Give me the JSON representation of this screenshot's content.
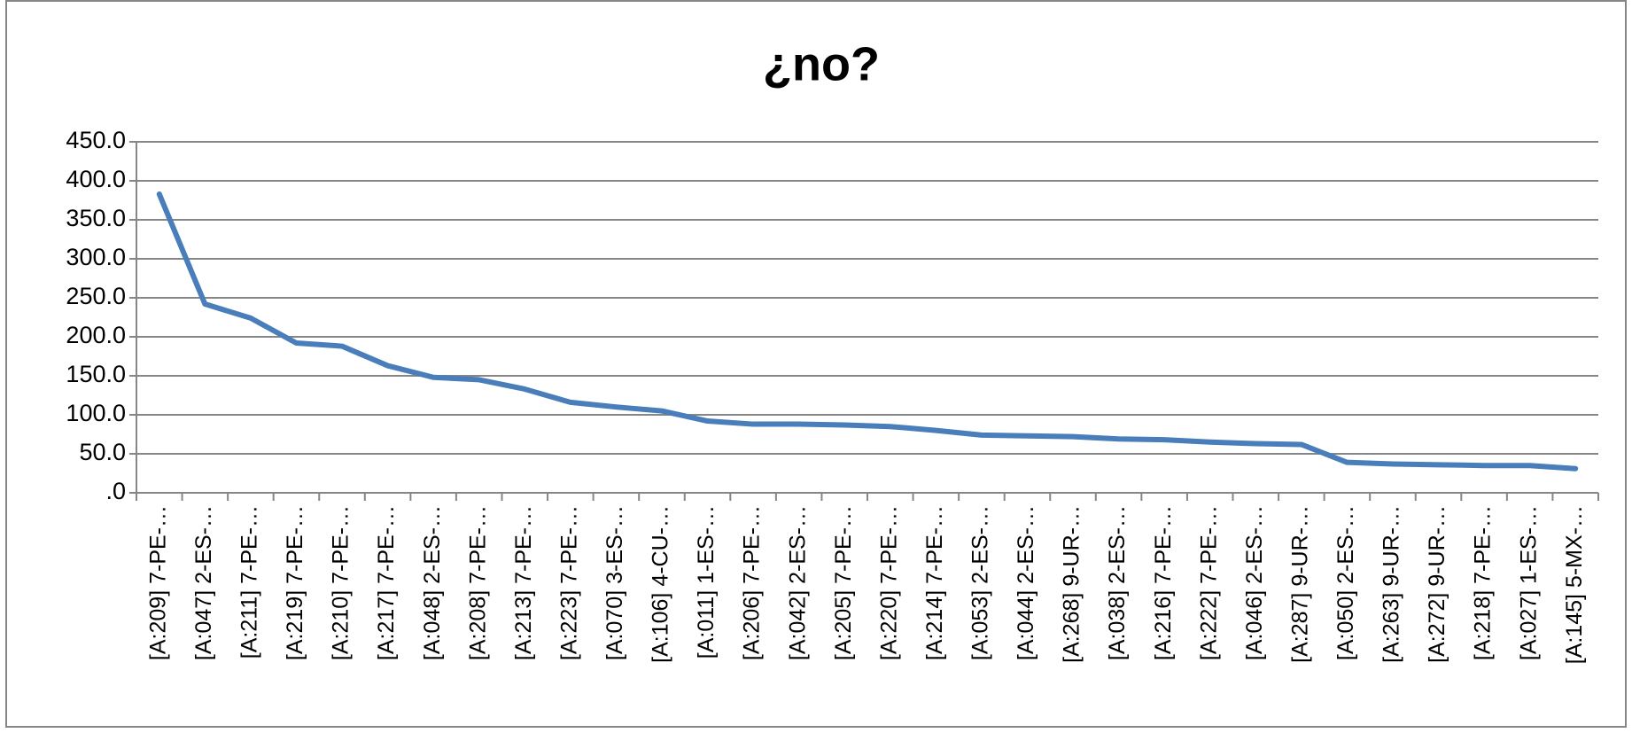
{
  "chart_data": {
    "type": "line",
    "title": "¿no?",
    "categories": [
      "[A:209] 7-PE-…",
      "[A:047] 2-ES-…",
      "[A:211] 7-PE-…",
      "[A:219] 7-PE-…",
      "[A:210] 7-PE-…",
      "[A:217] 7-PE-…",
      "[A:048] 2-ES-…",
      "[A:208] 7-PE-…",
      "[A:213] 7-PE-…",
      "[A:223] 7-PE-…",
      "[A:070] 3-ES-…",
      "[A:106] 4-CU-…",
      "[A:011] 1-ES-…",
      "[A:206] 7-PE-…",
      "[A:042] 2-ES-…",
      "[A:205] 7-PE-…",
      "[A:220] 7-PE-…",
      "[A:214] 7-PE-…",
      "[A:053] 2-ES-…",
      "[A:044] 2-ES-…",
      "[A:268] 9-UR-…",
      "[A:038] 2-ES-…",
      "[A:216] 7-PE-…",
      "[A:222] 7-PE-…",
      "[A:046] 2-ES-…",
      "[A:287] 9-UR-…",
      "[A:050] 2-ES-…",
      "[A:263] 9-UR-…",
      "[A:272] 9-UR-…",
      "[A:218] 7-PE-…",
      "[A:027] 1-ES-…",
      "[A:145] 5-MX-…"
    ],
    "values": [
      383,
      242,
      224,
      192,
      188,
      163,
      148,
      145,
      133,
      116,
      110,
      105,
      92,
      88,
      88,
      87,
      85,
      80,
      74,
      73,
      72,
      69,
      68,
      65,
      63,
      62,
      39,
      37,
      36,
      35,
      35,
      31
    ],
    "color": "#4a7ebb",
    "ylim": [
      0,
      450
    ],
    "yticks": [
      {
        "value": 0,
        "label": ".0"
      },
      {
        "value": 50,
        "label": "50.0"
      },
      {
        "value": 100,
        "label": "100.0"
      },
      {
        "value": 150,
        "label": "150.0"
      },
      {
        "value": 200,
        "label": "200.0"
      },
      {
        "value": 250,
        "label": "250.0"
      },
      {
        "value": 300,
        "label": "300.0"
      },
      {
        "value": 350,
        "label": "350.0"
      },
      {
        "value": 400,
        "label": "400.0"
      },
      {
        "value": 450,
        "label": "450.0"
      }
    ],
    "grid": true
  }
}
